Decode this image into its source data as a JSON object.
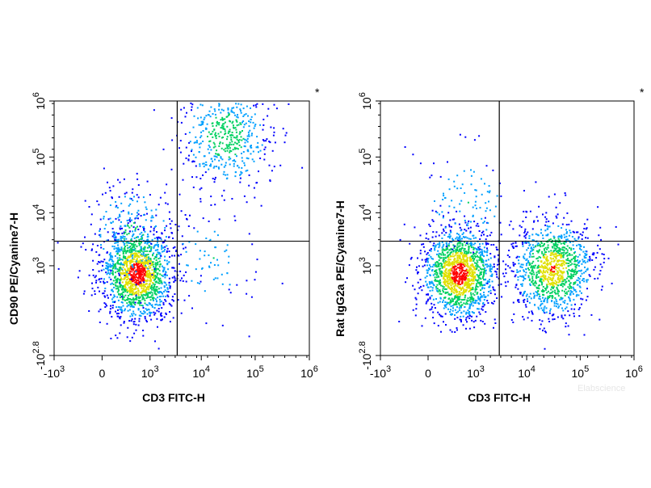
{
  "watermark": "Elabscience",
  "chart_data": [
    {
      "type": "scatter",
      "subtype": "flow-cytometry-density-dot-plot",
      "title": "",
      "xlabel": "CD3 FITC-H",
      "ylabel": "CD90 PE/Cyanine7-H",
      "corner_mark": "*",
      "x_scale": "biexponential",
      "y_scale": "biexponential",
      "xlim": [
        -1000,
        1000000
      ],
      "ylim": [
        -631,
        1000000
      ],
      "x_ticks": [
        {
          "base": "-10",
          "exp": "3",
          "value": -1000
        },
        {
          "base": "0",
          "exp": "",
          "value": 0
        },
        {
          "base": "10",
          "exp": "3",
          "value": 1000
        },
        {
          "base": "10",
          "exp": "4",
          "value": 10000
        },
        {
          "base": "10",
          "exp": "5",
          "value": 100000
        },
        {
          "base": "10",
          "exp": "6",
          "value": 1000000
        }
      ],
      "y_ticks": [
        {
          "base": "-10",
          "exp": "2.8",
          "value": -631
        },
        {
          "base": "10",
          "exp": "3",
          "value": 1000
        },
        {
          "base": "10",
          "exp": "4",
          "value": 10000
        },
        {
          "base": "10",
          "exp": "5",
          "value": 100000
        },
        {
          "base": "10",
          "exp": "6",
          "value": 1000000
        }
      ],
      "quadrant_gate": {
        "x": 3500,
        "y": 3000
      },
      "populations": [
        {
          "x": 500,
          "y": 700,
          "relative_density": 1.0
        },
        {
          "x": 400,
          "y": 4000,
          "relative_density": 0.15
        },
        {
          "x": 28000,
          "y": 250000,
          "relative_density": 0.35
        },
        {
          "x": 15000,
          "y": 1500,
          "relative_density": 0.03
        }
      ],
      "colormap": [
        "#0000ff",
        "#00a0ff",
        "#00d060",
        "#e0e000",
        "#ff0000"
      ]
    },
    {
      "type": "scatter",
      "subtype": "flow-cytometry-density-dot-plot",
      "title": "",
      "xlabel": "CD3 FITC-H",
      "ylabel": "Rat IgG2a PE/Cyanine7-H",
      "corner_mark": "*",
      "x_scale": "biexponential",
      "y_scale": "biexponential",
      "xlim": [
        -1000,
        1000000
      ],
      "ylim": [
        -631,
        1000000
      ],
      "x_ticks": [
        {
          "base": "-10",
          "exp": "3",
          "value": -1000
        },
        {
          "base": "0",
          "exp": "",
          "value": 0
        },
        {
          "base": "10",
          "exp": "3",
          "value": 1000
        },
        {
          "base": "10",
          "exp": "4",
          "value": 10000
        },
        {
          "base": "10",
          "exp": "5",
          "value": 100000
        },
        {
          "base": "10",
          "exp": "6",
          "value": 1000000
        }
      ],
      "y_ticks": [
        {
          "base": "-10",
          "exp": "2.8",
          "value": -631
        },
        {
          "base": "10",
          "exp": "3",
          "value": 1000
        },
        {
          "base": "10",
          "exp": "4",
          "value": 10000
        },
        {
          "base": "10",
          "exp": "5",
          "value": 100000
        },
        {
          "base": "10",
          "exp": "6",
          "value": 1000000
        }
      ],
      "quadrant_gate": {
        "x": 3000,
        "y": 3000
      },
      "populations": [
        {
          "x": 400,
          "y": 700,
          "relative_density": 1.0
        },
        {
          "x": 30000,
          "y": 900,
          "relative_density": 0.75
        },
        {
          "x": 600,
          "y": 15000,
          "relative_density": 0.05
        }
      ],
      "colormap": [
        "#0000ff",
        "#00a0ff",
        "#00d060",
        "#e0e000",
        "#ff0000"
      ]
    }
  ]
}
